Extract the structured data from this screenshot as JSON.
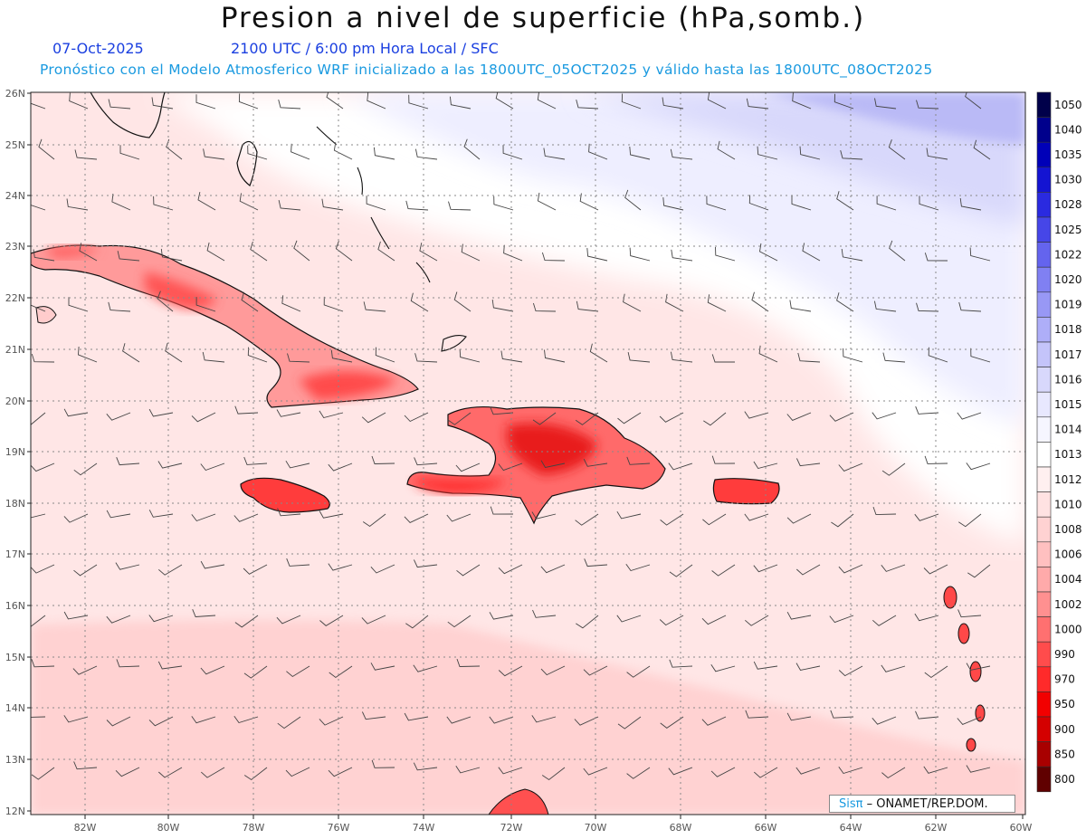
{
  "header": {
    "title": "Presion a nivel de superficie (hPa,somb.)",
    "date": "07-Oct-2025",
    "time": "2100 UTC / 6:00 pm Hora Local / SFC",
    "forecast": "Pronóstico con el Modelo Atmosferico WRF inicializado a las 1800UTC_05OCT2025 y válido hasta las  1800UTC_08OCT2025"
  },
  "map": {
    "lat_range": [
      12,
      26
    ],
    "lon_range": [
      -83,
      -60
    ],
    "lat_labels": [
      "26N",
      "25N",
      "24N",
      "23N",
      "22N",
      "21N",
      "20N",
      "19N",
      "18N",
      "17N",
      "16N",
      "15N",
      "14N",
      "13N",
      "12N"
    ],
    "lon_labels": [
      "82W",
      "80W",
      "78W",
      "76W",
      "74W",
      "72W",
      "70W",
      "68W",
      "66W",
      "64W",
      "62W",
      "60W"
    ]
  },
  "colorbar": {
    "levels": [
      "1050",
      "1040",
      "1035",
      "1030",
      "1028",
      "1025",
      "1022",
      "1020",
      "1019",
      "1018",
      "1017",
      "1016",
      "1015",
      "1014",
      "1013",
      "1012",
      "1010",
      "1008",
      "1006",
      "1004",
      "1002",
      "1000",
      "990",
      "970",
      "950",
      "900",
      "850",
      "800"
    ],
    "colors": [
      "#00004a",
      "#00008c",
      "#0000b8",
      "#1414d2",
      "#2a2ae0",
      "#4646e8",
      "#6464ee",
      "#8080f2",
      "#9898f5",
      "#aeaef8",
      "#c4c4fa",
      "#d8d8fc",
      "#e8e8fe",
      "#f6f6ff",
      "#ffffff",
      "#fff0f0",
      "#ffe2e2",
      "#ffd2d2",
      "#ffc0c0",
      "#ffaaaa",
      "#ff9090",
      "#ff7070",
      "#ff4c4c",
      "#ff2a2a",
      "#f20000",
      "#d40000",
      "#a80000",
      "#600000"
    ]
  },
  "credit": {
    "sis": "Sisπ",
    "text": "– ONAMET/REP.DOM."
  }
}
